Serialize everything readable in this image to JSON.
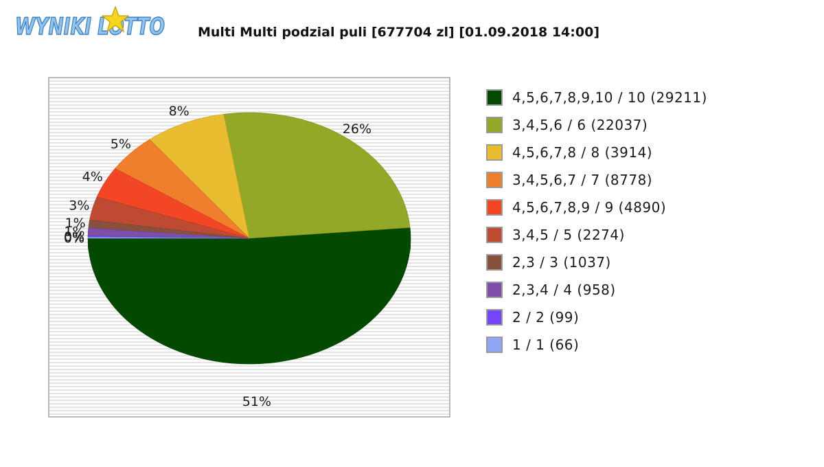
{
  "logo": {
    "text": "WYNIKI LOTTO"
  },
  "chart_data": {
    "type": "pie",
    "title": "Multi Multi podzial puli [677704 zl] [01.09.2018 14:00]",
    "slices": [
      {
        "label": "4,5,6,7,8,9,10 / 10 (29211)",
        "value": 51,
        "pct_label": "51%",
        "color": "#034a00"
      },
      {
        "label": "3,4,5,6 / 6 (22037)",
        "value": 26,
        "pct_label": "26%",
        "color": "#94a827"
      },
      {
        "label": "4,5,6,7,8 / 8 (3914)",
        "value": 8,
        "pct_label": "8%",
        "color": "#eabd30"
      },
      {
        "label": "3,4,5,6,7 / 7 (8778)",
        "value": 5,
        "pct_label": "5%",
        "color": "#ef7f2c"
      },
      {
        "label": "4,5,6,7,8,9 / 9 (4890)",
        "value": 4,
        "pct_label": "4%",
        "color": "#f24625"
      },
      {
        "label": "3,4,5 / 5 (2274)",
        "value": 3,
        "pct_label": "3%",
        "color": "#bf4a32"
      },
      {
        "label": "2,3 / 3 (1037)",
        "value": 1,
        "pct_label": "1%",
        "color": "#87513d"
      },
      {
        "label": "2,3,4 / 4 (958)",
        "value": 1,
        "pct_label": "1%",
        "color": "#7d4fa8"
      },
      {
        "label": "2 / 2 (99)",
        "value": 0,
        "pct_label": "0%",
        "color": "#7546f7"
      },
      {
        "label": "1 / 1 (66)",
        "value": 0,
        "pct_label": "0%",
        "color": "#93a6f5"
      }
    ],
    "legend_position": "right",
    "background": "horizontal-striped"
  }
}
